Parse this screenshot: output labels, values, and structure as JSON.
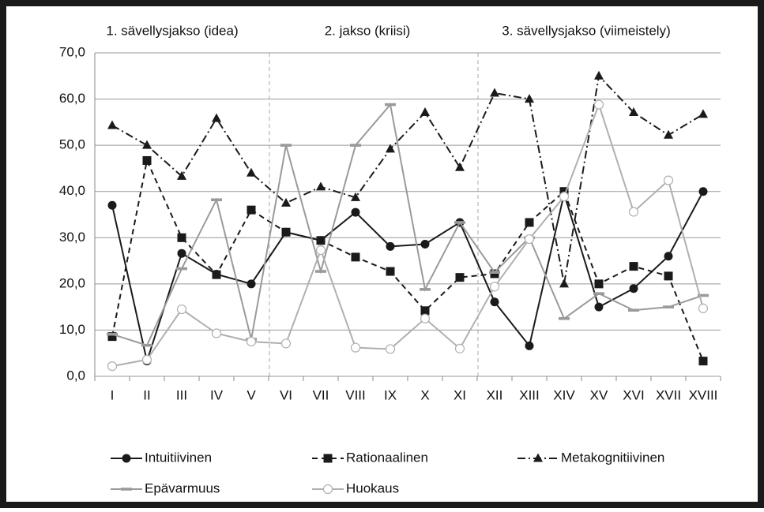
{
  "chart_data": {
    "type": "line",
    "sections": [
      "1. sävellysjakso (idea)",
      "2. jakso (kriisi)",
      "3. sävellysjakso (viimeistely)"
    ],
    "categories": [
      "I",
      "II",
      "III",
      "IV",
      "V",
      "VI",
      "VII",
      "VIII",
      "IX",
      "X",
      "XI",
      "XII",
      "XIII",
      "XIV",
      "XV",
      "XVI",
      "XVII",
      "XVIII"
    ],
    "ylim": [
      0,
      70
    ],
    "yticks": [
      {
        "value": 0,
        "label": "0,0"
      },
      {
        "value": 10,
        "label": "10,0"
      },
      {
        "value": 20,
        "label": "20,0"
      },
      {
        "value": 30,
        "label": "30,0"
      },
      {
        "value": 40,
        "label": "40,0"
      },
      {
        "value": 50,
        "label": "50,0"
      },
      {
        "value": 60,
        "label": "60,0"
      },
      {
        "value": 70,
        "label": "70,0"
      }
    ],
    "grid": true,
    "series": [
      {
        "name": "Intuitiivinen",
        "color": "#1a1a1a",
        "dash": "solid",
        "marker": "circle",
        "values": [
          37.0,
          3.3,
          26.6,
          22.1,
          20.0,
          31.2,
          29.4,
          35.5,
          28.1,
          28.6,
          33.3,
          16.1,
          6.6,
          39.5,
          15.0,
          19.0,
          26.0,
          40.0
        ]
      },
      {
        "name": "Rationaalinen",
        "color": "#1a1a1a",
        "dash": "dashed",
        "marker": "square",
        "values": [
          8.6,
          46.7,
          30.0,
          22.0,
          36.0,
          31.2,
          29.4,
          25.8,
          22.7,
          14.2,
          21.4,
          22.2,
          33.3,
          40.0,
          20.0,
          23.8,
          21.7,
          3.3
        ]
      },
      {
        "name": "Metakognitiivinen",
        "color": "#1a1a1a",
        "dash": "dashdot",
        "marker": "triangle",
        "values": [
          54.3,
          50.0,
          43.3,
          55.8,
          44.0,
          37.5,
          41.0,
          38.7,
          49.2,
          57.1,
          45.2,
          61.3,
          60.0,
          20.0,
          65.0,
          57.1,
          52.2,
          56.7
        ]
      },
      {
        "name": "Epävarmuus",
        "color": "#9a9a9a",
        "dash": "solid",
        "marker": "dash",
        "values": [
          9.1,
          6.7,
          23.3,
          38.2,
          8.0,
          50.0,
          22.7,
          50.0,
          58.8,
          18.8,
          33.3,
          22.5,
          30.0,
          12.5,
          17.9,
          14.3,
          15.0,
          17.5
        ]
      },
      {
        "name": "Huokaus",
        "color": "#b0b0b0",
        "dash": "solid",
        "marker": "open-circle",
        "values": [
          2.2,
          3.6,
          14.5,
          9.3,
          7.5,
          7.1,
          27.3,
          6.2,
          5.9,
          12.5,
          6.0,
          19.4,
          29.7,
          38.9,
          58.8,
          35.6,
          42.4,
          14.7
        ]
      }
    ]
  }
}
